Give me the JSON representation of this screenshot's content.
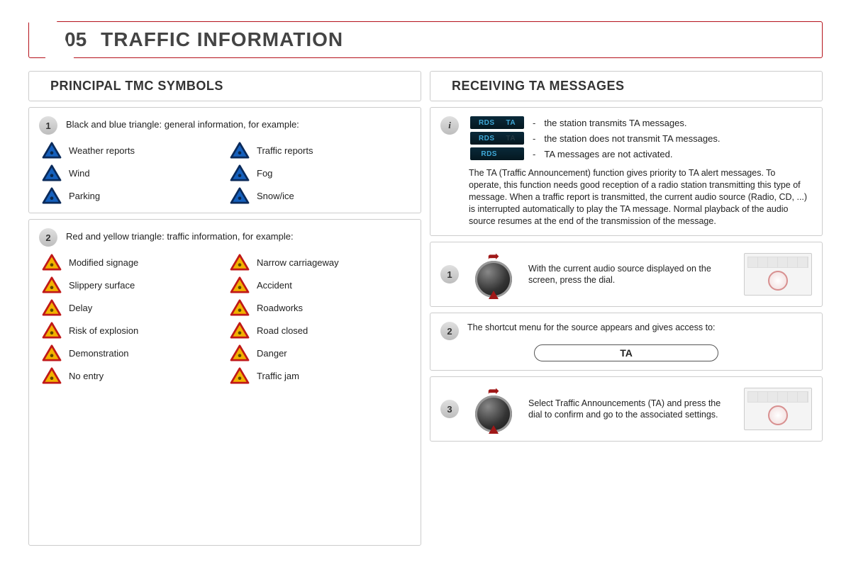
{
  "chapter": {
    "num": "05",
    "title": "TRAFFIC INFORMATION"
  },
  "left": {
    "header": "PRINCIPAL TMC SYMBOLS",
    "group1": {
      "badge": "1",
      "intro": "Black and blue triangle: general information, for example:",
      "tri_stroke": "#0a2a5a",
      "tri_fill": "#1560bd",
      "items": [
        {
          "label": "Weather reports"
        },
        {
          "label": "Traffic reports"
        },
        {
          "label": "Wind"
        },
        {
          "label": "Fog"
        },
        {
          "label": "Parking"
        },
        {
          "label": "Snow/ice"
        }
      ]
    },
    "group2": {
      "badge": "2",
      "intro": "Red and yellow triangle: traffic information, for example:",
      "tri_stroke": "#c01818",
      "tri_fill": "#f2b200",
      "items": [
        {
          "label": "Modified signage"
        },
        {
          "label": "Narrow carriageway"
        },
        {
          "label": "Slippery surface"
        },
        {
          "label": "Accident"
        },
        {
          "label": "Delay"
        },
        {
          "label": "Roadworks"
        },
        {
          "label": "Risk of explosion"
        },
        {
          "label": "Road closed"
        },
        {
          "label": "Demonstration"
        },
        {
          "label": "Danger"
        },
        {
          "label": "No entry"
        },
        {
          "label": "Traffic jam"
        }
      ]
    }
  },
  "right": {
    "header": "RECEIVING TA MESSAGES",
    "info_badge": "i",
    "rds": [
      {
        "rds_on": true,
        "ta_on": true,
        "text": "the station transmits TA messages."
      },
      {
        "rds_on": true,
        "ta_on": false,
        "text": "the station does not transmit TA messages."
      },
      {
        "rds_on": true,
        "ta_on": null,
        "text": "TA messages are not activated."
      }
    ],
    "rds_label": "RDS",
    "ta_label": "TA",
    "dash": "-",
    "ta_body": "The TA (Traffic Announcement) function gives priority to TA alert messages. To operate, this function needs good reception of a radio station transmitting this type of message. When a traffic report is transmitted, the current audio source (Radio, CD, ...) is interrupted automatically to play the TA message. Normal playback of the audio source resumes at the end of the transmission of the message.",
    "step1": {
      "badge": "1",
      "text": "With the current audio source displayed on the screen, press the dial."
    },
    "step2": {
      "badge": "2",
      "text": "The shortcut menu for the source appears and gives access to:",
      "pill": "TA"
    },
    "step3": {
      "badge": "3",
      "text": "Select Traffic Announcements (TA) and press the dial to confirm and go to the associated settings."
    }
  }
}
